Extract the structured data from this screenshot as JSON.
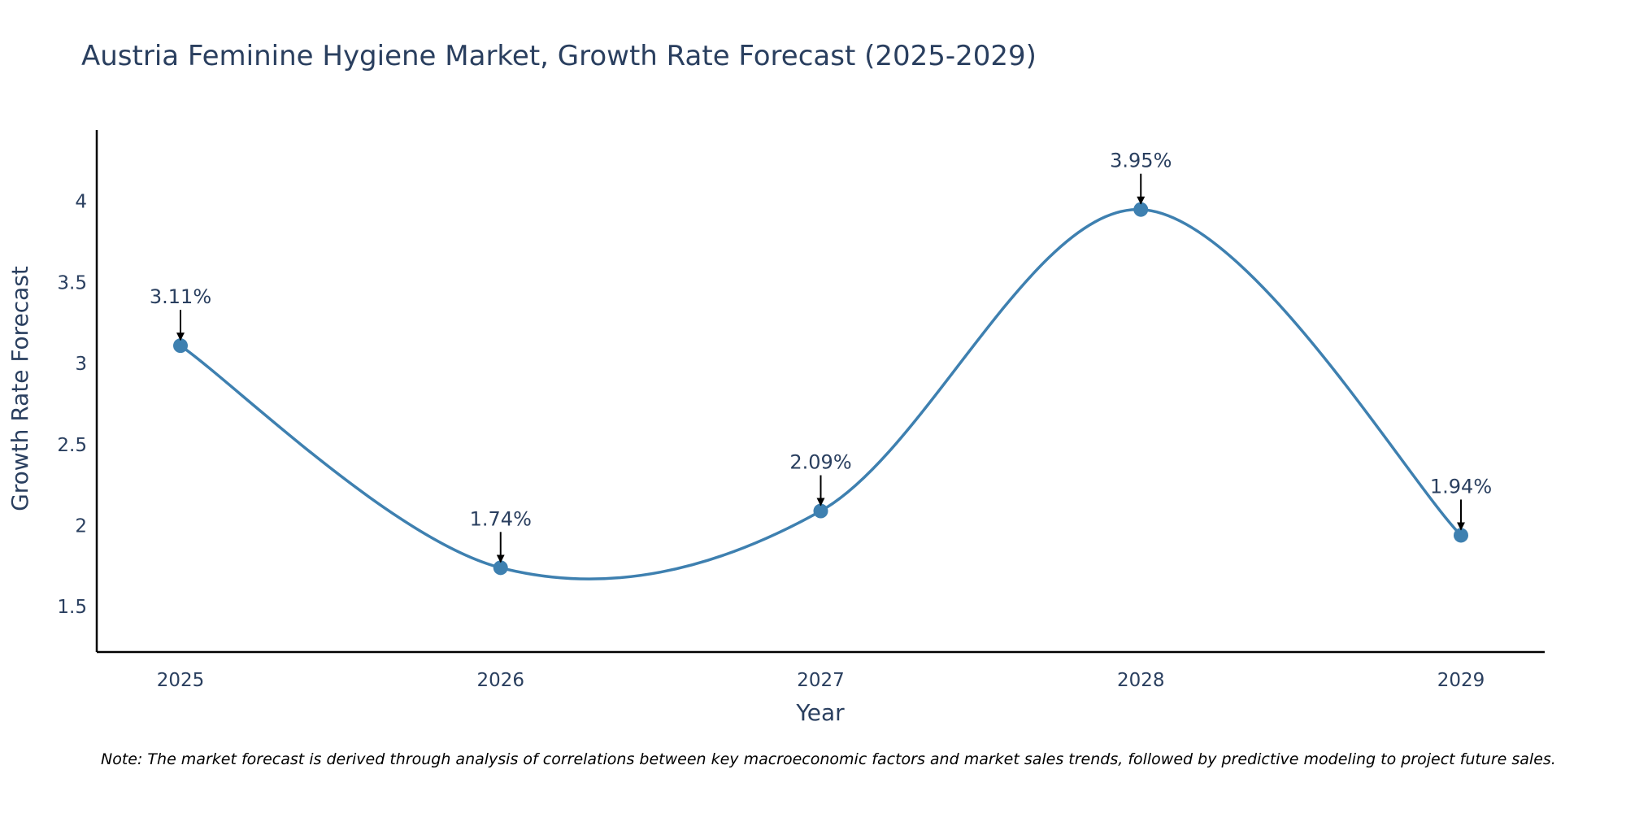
{
  "chart_data": {
    "type": "line",
    "title": "Austria Feminine Hygiene Market, Growth Rate Forecast (2025-2029)",
    "xlabel": "Year",
    "ylabel": "Growth Rate Forecast",
    "categories": [
      "2025",
      "2026",
      "2027",
      "2028",
      "2029"
    ],
    "series": [
      {
        "name": "Growth Rate Forecast",
        "values": [
          3.11,
          1.74,
          2.09,
          3.95,
          1.94
        ],
        "labels": [
          "3.11%",
          "1.74%",
          "2.09%",
          "3.95%",
          "1.94%"
        ]
      }
    ],
    "yticks": [
      1.5,
      2,
      2.5,
      3,
      3.5,
      4
    ],
    "ytick_labels": [
      "1.5",
      "2",
      "2.5",
      "3",
      "3.5",
      "4"
    ],
    "ylim": [
      1.22,
      4.44
    ],
    "grid": false,
    "line_shape": "spline",
    "line_color": "#3e80b0",
    "marker_color": "#3e80b0",
    "note": "Note: The market forecast is derived through analysis of correlations between key macroeconomic factors and market sales trends, followed by predictive modeling to project future sales."
  }
}
